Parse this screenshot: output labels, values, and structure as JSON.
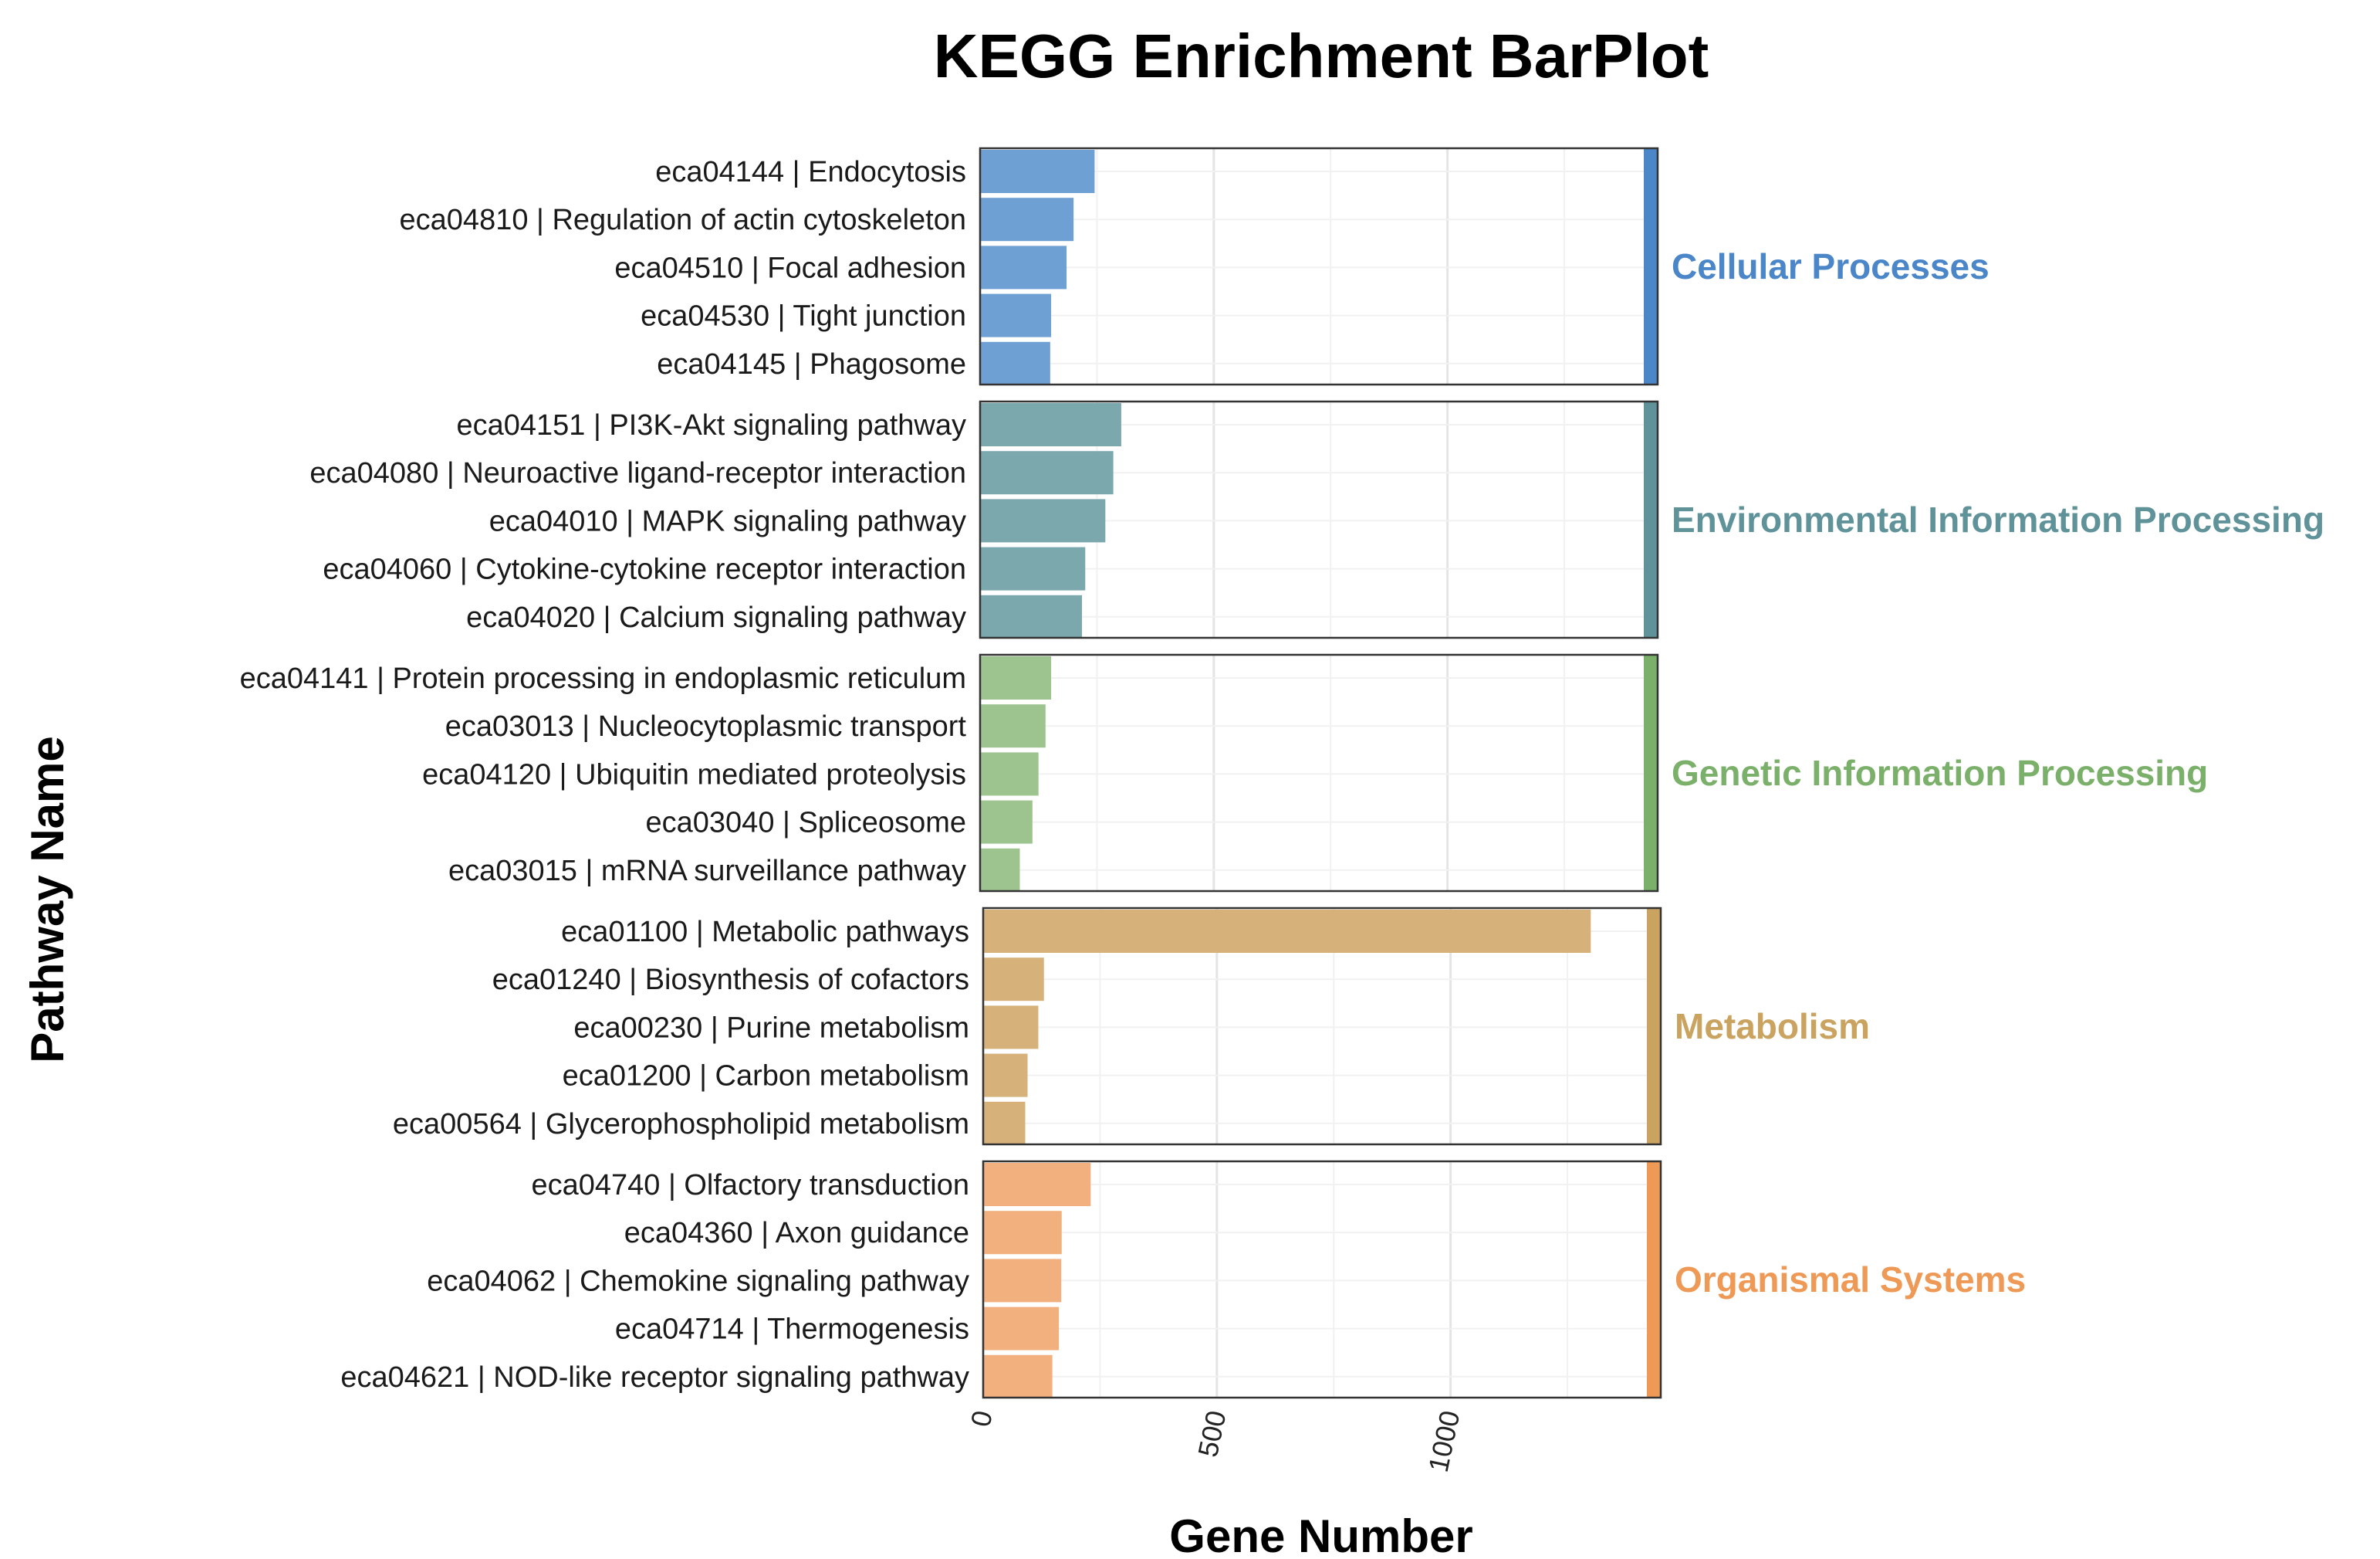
{
  "chart_data": {
    "type": "bar",
    "orientation": "horizontal",
    "title": "KEGG Enrichment BarPlot",
    "xlabel": "Gene Number",
    "ylabel": "Pathway Name",
    "xlim": [
      0,
      1420
    ],
    "xticks": [
      0,
      500,
      1000
    ],
    "grid": true,
    "groups": [
      {
        "name": "Cellular Processes",
        "color": "#6fa0d3",
        "strip_color": "#4a86c8",
        "label_color": "#4a86c8",
        "categories": [
          {
            "label": "eca04144 | Endocytosis",
            "value": 245
          },
          {
            "label": "eca04810 | Regulation of actin cytoskeleton",
            "value": 200
          },
          {
            "label": "eca04510 | Focal adhesion",
            "value": 185
          },
          {
            "label": "eca04530 | Tight junction",
            "value": 152
          },
          {
            "label": "eca04145 | Phagosome",
            "value": 150
          }
        ]
      },
      {
        "name": "Environmental Information Processing",
        "color": "#7aa8ad",
        "strip_color": "#5f9399",
        "label_color": "#5f9399",
        "categories": [
          {
            "label": "eca04151 | PI3K-Akt signaling pathway",
            "value": 302
          },
          {
            "label": "eca04080 | Neuroactive ligand-receptor interaction",
            "value": 285
          },
          {
            "label": "eca04010 | MAPK signaling pathway",
            "value": 268
          },
          {
            "label": "eca04060 | Cytokine-cytokine receptor interaction",
            "value": 225
          },
          {
            "label": "eca04020 | Calcium signaling pathway",
            "value": 218
          }
        ]
      },
      {
        "name": "Genetic Information Processing",
        "color": "#9dc48f",
        "strip_color": "#7bb06a",
        "label_color": "#7bb06a",
        "categories": [
          {
            "label": "eca04141 | Protein processing in endoplasmic reticulum",
            "value": 152
          },
          {
            "label": "eca03013 | Nucleocytoplasmic transport",
            "value": 140
          },
          {
            "label": "eca04120 | Ubiquitin mediated proteolysis",
            "value": 125
          },
          {
            "label": "eca03040 | Spliceosome",
            "value": 112
          },
          {
            "label": "eca03015 | mRNA surveillance pathway",
            "value": 85
          }
        ]
      },
      {
        "name": "Metabolism",
        "color": "#d6b27a",
        "strip_color": "#c9a35f",
        "label_color": "#c9a35f",
        "categories": [
          {
            "label": "eca01100 | Metabolic pathways",
            "value": 1300
          },
          {
            "label": "eca01240 | Biosynthesis of cofactors",
            "value": 130
          },
          {
            "label": "eca00230 | Purine metabolism",
            "value": 118
          },
          {
            "label": "eca01200 | Carbon metabolism",
            "value": 95
          },
          {
            "label": "eca00564 | Glycerophospholipid metabolism",
            "value": 90
          }
        ]
      },
      {
        "name": "Organismal Systems",
        "color": "#f2b07f",
        "strip_color": "#ee9955",
        "label_color": "#ee9955",
        "categories": [
          {
            "label": "eca04740 | Olfactory transduction",
            "value": 230
          },
          {
            "label": "eca04360 | Axon guidance",
            "value": 168
          },
          {
            "label": "eca04062 | Chemokine signaling pathway",
            "value": 167
          },
          {
            "label": "eca04714 | Thermogenesis",
            "value": 162
          },
          {
            "label": "eca04621 | NOD-like receptor signaling pathway",
            "value": 148
          }
        ]
      }
    ]
  }
}
